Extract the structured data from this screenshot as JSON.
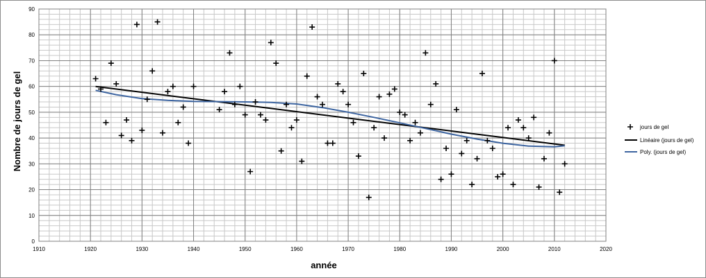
{
  "chart_data": {
    "type": "scatter",
    "title": "",
    "xlabel": "année",
    "ylabel": "Nombre de jours de gel",
    "xlim": [
      1910,
      2020
    ],
    "ylim": [
      0,
      90
    ],
    "x_ticks": [
      1910,
      1920,
      1930,
      1940,
      1950,
      1960,
      1970,
      1980,
      1990,
      2000,
      2010,
      2020
    ],
    "y_ticks": [
      0,
      10,
      20,
      30,
      40,
      50,
      60,
      70,
      80,
      90
    ],
    "x_minor_step": 2,
    "y_minor_step": 2,
    "grid": true,
    "legend_position": "right",
    "series": [
      {
        "name": "jours de gel",
        "kind": "scatter",
        "marker": "plus",
        "color": "#000000",
        "points": [
          [
            1921,
            63
          ],
          [
            1922,
            59
          ],
          [
            1923,
            46
          ],
          [
            1924,
            69
          ],
          [
            1925,
            61
          ],
          [
            1926,
            41
          ],
          [
            1927,
            47
          ],
          [
            1928,
            39
          ],
          [
            1929,
            84
          ],
          [
            1930,
            43
          ],
          [
            1931,
            55
          ],
          [
            1932,
            66
          ],
          [
            1933,
            85
          ],
          [
            1934,
            42
          ],
          [
            1935,
            58
          ],
          [
            1936,
            60
          ],
          [
            1937,
            46
          ],
          [
            1938,
            52
          ],
          [
            1939,
            38
          ],
          [
            1940,
            60
          ],
          [
            1945,
            51
          ],
          [
            1946,
            58
          ],
          [
            1947,
            73
          ],
          [
            1948,
            53
          ],
          [
            1949,
            60
          ],
          [
            1950,
            49
          ],
          [
            1951,
            27
          ],
          [
            1952,
            54
          ],
          [
            1953,
            49
          ],
          [
            1954,
            47
          ],
          [
            1955,
            77
          ],
          [
            1956,
            69
          ],
          [
            1957,
            35
          ],
          [
            1958,
            53
          ],
          [
            1959,
            44
          ],
          [
            1960,
            47
          ],
          [
            1961,
            31
          ],
          [
            1962,
            64
          ],
          [
            1963,
            83
          ],
          [
            1964,
            56
          ],
          [
            1965,
            53
          ],
          [
            1966,
            38
          ],
          [
            1967,
            38
          ],
          [
            1968,
            61
          ],
          [
            1969,
            58
          ],
          [
            1970,
            53
          ],
          [
            1971,
            46
          ],
          [
            1972,
            33
          ],
          [
            1973,
            65
          ],
          [
            1974,
            17
          ],
          [
            1975,
            44
          ],
          [
            1976,
            56
          ],
          [
            1977,
            40
          ],
          [
            1978,
            57
          ],
          [
            1979,
            59
          ],
          [
            1980,
            50
          ],
          [
            1981,
            49
          ],
          [
            1982,
            39
          ],
          [
            1983,
            46
          ],
          [
            1984,
            42
          ],
          [
            1985,
            73
          ],
          [
            1986,
            53
          ],
          [
            1987,
            61
          ],
          [
            1988,
            24
          ],
          [
            1989,
            36
          ],
          [
            1990,
            26
          ],
          [
            1991,
            51
          ],
          [
            1992,
            34
          ],
          [
            1993,
            39
          ],
          [
            1994,
            22
          ],
          [
            1995,
            32
          ],
          [
            1996,
            65
          ],
          [
            1997,
            39
          ],
          [
            1998,
            36
          ],
          [
            1999,
            25
          ],
          [
            2000,
            26
          ],
          [
            2001,
            44
          ],
          [
            2002,
            22
          ],
          [
            2003,
            47
          ],
          [
            2004,
            44
          ],
          [
            2005,
            40
          ],
          [
            2006,
            48
          ],
          [
            2007,
            21
          ],
          [
            2008,
            32
          ],
          [
            2009,
            42
          ],
          [
            2010,
            70
          ],
          [
            2011,
            19
          ],
          [
            2012,
            30
          ]
        ]
      },
      {
        "name": "Linéaire  (jours de gel)",
        "kind": "line",
        "color": "#000000",
        "points": [
          [
            1921,
            60.0
          ],
          [
            2012,
            37.2
          ]
        ]
      },
      {
        "name": "Poly.  (jours de gel)",
        "kind": "line",
        "color": "#3c64a0",
        "points": [
          [
            1921,
            58.5
          ],
          [
            1925,
            56.8
          ],
          [
            1930,
            55.3
          ],
          [
            1935,
            54.6
          ],
          [
            1940,
            54.2
          ],
          [
            1945,
            54.1
          ],
          [
            1950,
            54.0
          ],
          [
            1955,
            53.8
          ],
          [
            1960,
            53.2
          ],
          [
            1965,
            51.8
          ],
          [
            1970,
            50.0
          ],
          [
            1975,
            48.0
          ],
          [
            1980,
            45.9
          ],
          [
            1985,
            43.7
          ],
          [
            1990,
            41.5
          ],
          [
            1995,
            39.6
          ],
          [
            2000,
            38.0
          ],
          [
            2005,
            36.9
          ],
          [
            2010,
            36.6
          ],
          [
            2012,
            37.0
          ]
        ]
      }
    ]
  }
}
